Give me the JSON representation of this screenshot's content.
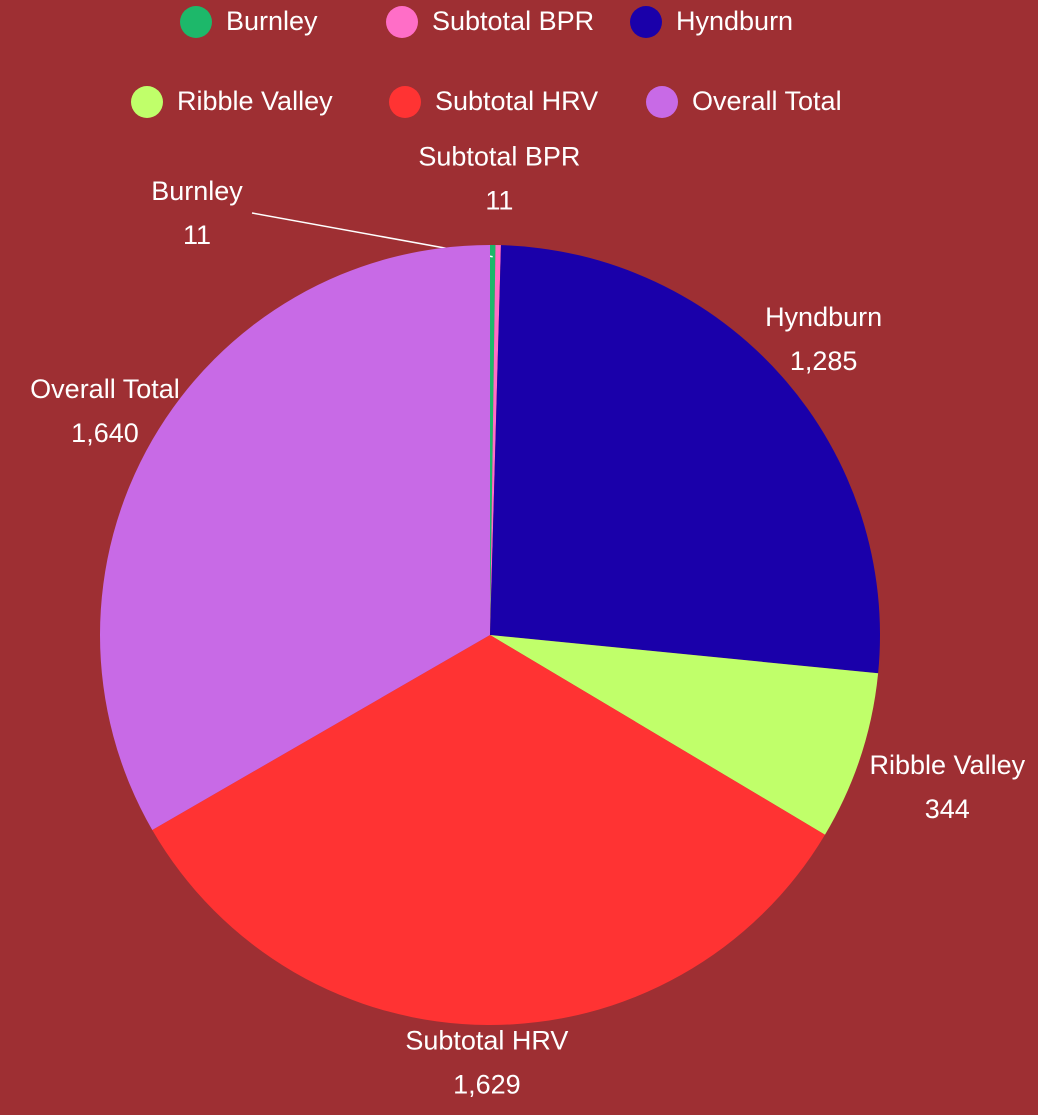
{
  "chart_data": {
    "type": "pie",
    "categories": [
      "Burnley",
      "Subtotal BPR",
      "Hyndburn",
      "Ribble Valley",
      "Subtotal HRV",
      "Overall Total"
    ],
    "values": [
      11,
      11,
      1285,
      344,
      1629,
      1640
    ],
    "value_labels": [
      "11",
      "11",
      "1,285",
      "344",
      "1,629",
      "1,640"
    ],
    "colors": [
      "#1db86a",
      "#ff6ec7",
      "#1a00aa",
      "#c0ff6a",
      "#ff3333",
      "#c86ae6"
    ],
    "legend": "top"
  }
}
